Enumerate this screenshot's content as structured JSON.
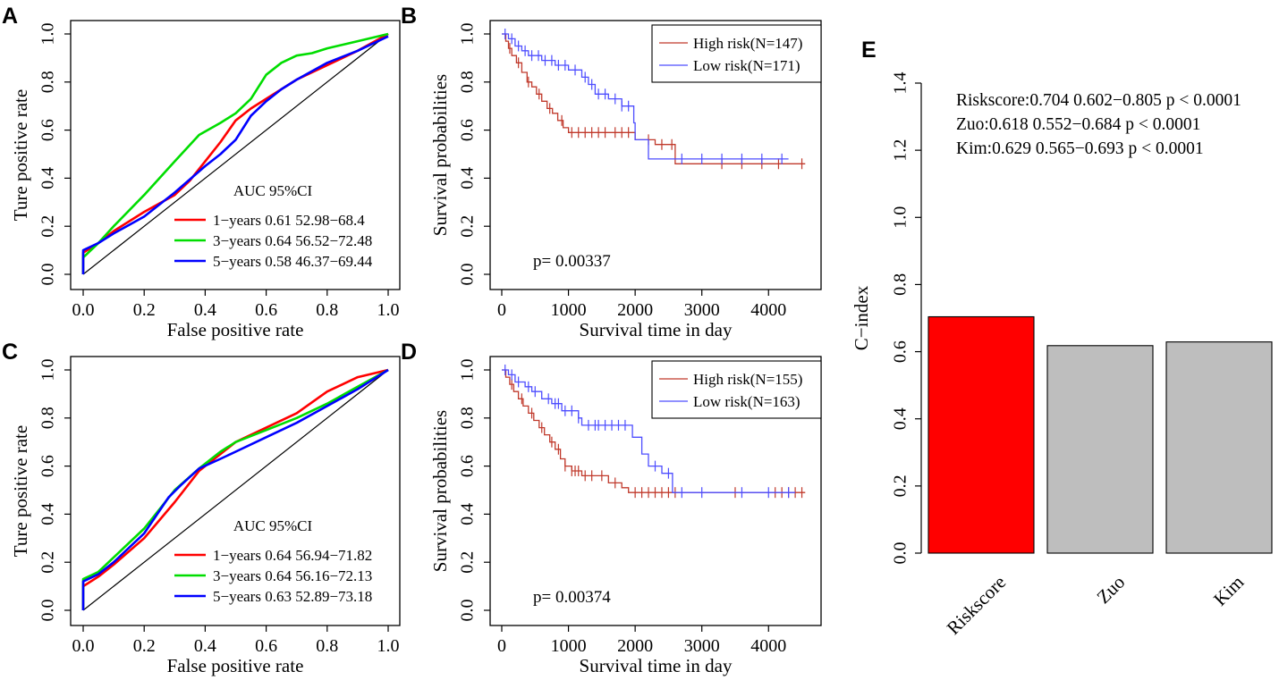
{
  "panels": {
    "A": {
      "letter": "A"
    },
    "B": {
      "letter": "B"
    },
    "C": {
      "letter": "C"
    },
    "D": {
      "letter": "D"
    },
    "E": {
      "letter": "E"
    }
  },
  "chart_data": [
    {
      "panel": "A",
      "type": "line",
      "title": "",
      "xlabel": "False positive rate",
      "ylabel": "Ture positive rate",
      "xlim": [
        0,
        1
      ],
      "ylim": [
        0,
        1
      ],
      "xticks": [
        "0.0",
        "0.2",
        "0.4",
        "0.6",
        "0.8",
        "1.0"
      ],
      "yticks": [
        "0.0",
        "0.2",
        "0.4",
        "0.6",
        "0.8",
        "1.0"
      ],
      "legend_title": "AUC 95%CI",
      "diagonal": true,
      "series": [
        {
          "name": "1−years 0.61 52.98−68.4",
          "color": "#ff0000",
          "points": [
            [
              0,
              0
            ],
            [
              0,
              0.09
            ],
            [
              0.05,
              0.13
            ],
            [
              0.1,
              0.18
            ],
            [
              0.2,
              0.26
            ],
            [
              0.3,
              0.33
            ],
            [
              0.35,
              0.39
            ],
            [
              0.4,
              0.47
            ],
            [
              0.45,
              0.55
            ],
            [
              0.5,
              0.64
            ],
            [
              0.55,
              0.69
            ],
            [
              0.6,
              0.73
            ],
            [
              0.65,
              0.77
            ],
            [
              0.7,
              0.81
            ],
            [
              0.8,
              0.87
            ],
            [
              0.9,
              0.93
            ],
            [
              1,
              1
            ]
          ]
        },
        {
          "name": "3−years 0.64 56.52−72.48",
          "color": "#00dd00",
          "points": [
            [
              0,
              0
            ],
            [
              0,
              0.07
            ],
            [
              0.05,
              0.13
            ],
            [
              0.1,
              0.2
            ],
            [
              0.2,
              0.33
            ],
            [
              0.3,
              0.47
            ],
            [
              0.38,
              0.58
            ],
            [
              0.45,
              0.63
            ],
            [
              0.5,
              0.67
            ],
            [
              0.55,
              0.73
            ],
            [
              0.6,
              0.83
            ],
            [
              0.65,
              0.88
            ],
            [
              0.7,
              0.91
            ],
            [
              0.75,
              0.92
            ],
            [
              0.8,
              0.94
            ],
            [
              0.9,
              0.97
            ],
            [
              1,
              1
            ]
          ]
        },
        {
          "name": "5−years 0.58 46.37−69.44",
          "color": "#0000ff",
          "points": [
            [
              0,
              0
            ],
            [
              0,
              0.1
            ],
            [
              0.05,
              0.13
            ],
            [
              0.1,
              0.17
            ],
            [
              0.2,
              0.24
            ],
            [
              0.3,
              0.34
            ],
            [
              0.4,
              0.45
            ],
            [
              0.45,
              0.5
            ],
            [
              0.5,
              0.56
            ],
            [
              0.55,
              0.66
            ],
            [
              0.6,
              0.72
            ],
            [
              0.65,
              0.77
            ],
            [
              0.7,
              0.81
            ],
            [
              0.8,
              0.88
            ],
            [
              0.9,
              0.93
            ],
            [
              1,
              0.99
            ]
          ]
        }
      ]
    },
    {
      "panel": "B",
      "type": "line",
      "subtype": "kaplan-meier",
      "title": "",
      "xlabel": "Survival time in day",
      "ylabel": "Survival probabilities",
      "xlim": [
        0,
        4600
      ],
      "ylim": [
        0,
        1
      ],
      "xticks": [
        "0",
        "1000",
        "2000",
        "3000",
        "4000"
      ],
      "yticks": [
        "0.0",
        "0.2",
        "0.4",
        "0.6",
        "0.8",
        "1.0"
      ],
      "pvalue_label": "p= 0.00337",
      "series": [
        {
          "name": "High risk(N=147)",
          "color": "#c0392b",
          "steps": [
            [
              0,
              1
            ],
            [
              60,
              0.97
            ],
            [
              100,
              0.94
            ],
            [
              150,
              0.91
            ],
            [
              220,
              0.88
            ],
            [
              300,
              0.84
            ],
            [
              380,
              0.8
            ],
            [
              450,
              0.78
            ],
            [
              520,
              0.75
            ],
            [
              600,
              0.72
            ],
            [
              680,
              0.69
            ],
            [
              760,
              0.67
            ],
            [
              840,
              0.64
            ],
            [
              920,
              0.61
            ],
            [
              1000,
              0.59
            ],
            [
              1400,
              0.59
            ],
            [
              2000,
              0.56
            ],
            [
              2300,
              0.54
            ],
            [
              2600,
              0.46
            ],
            [
              4550,
              0.46
            ]
          ],
          "censor_x": [
            120,
            250,
            400,
            560,
            720,
            900,
            1050,
            1150,
            1250,
            1350,
            1450,
            1550,
            1700,
            1800,
            1900,
            2200,
            2400,
            2550,
            3300,
            3600,
            3900,
            4150,
            4500
          ]
        },
        {
          "name": "Low risk(N=171)",
          "color": "#4d4dff",
          "steps": [
            [
              0,
              1
            ],
            [
              100,
              0.98
            ],
            [
              200,
              0.95
            ],
            [
              300,
              0.93
            ],
            [
              400,
              0.91
            ],
            [
              600,
              0.89
            ],
            [
              800,
              0.87
            ],
            [
              1000,
              0.85
            ],
            [
              1200,
              0.82
            ],
            [
              1300,
              0.79
            ],
            [
              1400,
              0.75
            ],
            [
              1600,
              0.73
            ],
            [
              1800,
              0.7
            ],
            [
              1980,
              0.63
            ],
            [
              2000,
              0.56
            ],
            [
              2200,
              0.48
            ],
            [
              4300,
              0.48
            ]
          ],
          "censor_x": [
            50,
            150,
            250,
            350,
            450,
            550,
            650,
            750,
            850,
            950,
            1100,
            1250,
            1350,
            1450,
            1550,
            1700,
            1800,
            1900,
            2700,
            3000,
            3300,
            3600,
            3900,
            4200
          ]
        }
      ]
    },
    {
      "panel": "C",
      "type": "line",
      "title": "",
      "xlabel": "False positive rate",
      "ylabel": "Ture positive rate",
      "xlim": [
        0,
        1
      ],
      "ylim": [
        0,
        1
      ],
      "xticks": [
        "0.0",
        "0.2",
        "0.4",
        "0.6",
        "0.8",
        "1.0"
      ],
      "yticks": [
        "0.0",
        "0.2",
        "0.4",
        "0.6",
        "0.8",
        "1.0"
      ],
      "legend_title": "AUC 95%CI",
      "diagonal": true,
      "series": [
        {
          "name": "1−years 0.64 56.94−71.82",
          "color": "#ff0000",
          "points": [
            [
              0,
              0
            ],
            [
              0,
              0.1
            ],
            [
              0.05,
              0.14
            ],
            [
              0.1,
              0.19
            ],
            [
              0.2,
              0.3
            ],
            [
              0.3,
              0.45
            ],
            [
              0.38,
              0.58
            ],
            [
              0.45,
              0.65
            ],
            [
              0.5,
              0.7
            ],
            [
              0.6,
              0.76
            ],
            [
              0.7,
              0.82
            ],
            [
              0.8,
              0.91
            ],
            [
              0.9,
              0.97
            ],
            [
              1,
              1
            ]
          ]
        },
        {
          "name": "3−years 0.64 56.16−72.13",
          "color": "#00dd00",
          "points": [
            [
              0,
              0
            ],
            [
              0,
              0.13
            ],
            [
              0.05,
              0.16
            ],
            [
              0.1,
              0.22
            ],
            [
              0.2,
              0.34
            ],
            [
              0.3,
              0.5
            ],
            [
              0.38,
              0.59
            ],
            [
              0.45,
              0.66
            ],
            [
              0.5,
              0.7
            ],
            [
              0.6,
              0.75
            ],
            [
              0.7,
              0.8
            ],
            [
              0.8,
              0.86
            ],
            [
              0.9,
              0.93
            ],
            [
              1,
              1
            ]
          ]
        },
        {
          "name": "5−years 0.63 52.89−73.18",
          "color": "#0000ff",
          "points": [
            [
              0,
              0
            ],
            [
              0,
              0.12
            ],
            [
              0.05,
              0.15
            ],
            [
              0.1,
              0.2
            ],
            [
              0.2,
              0.32
            ],
            [
              0.28,
              0.47
            ],
            [
              0.32,
              0.52
            ],
            [
              0.38,
              0.59
            ],
            [
              0.45,
              0.63
            ],
            [
              0.5,
              0.66
            ],
            [
              0.6,
              0.72
            ],
            [
              0.7,
              0.78
            ],
            [
              0.8,
              0.85
            ],
            [
              0.9,
              0.92
            ],
            [
              1,
              1
            ]
          ]
        }
      ]
    },
    {
      "panel": "D",
      "type": "line",
      "subtype": "kaplan-meier",
      "title": "",
      "xlabel": "Survival time in day",
      "ylabel": "Survival probabilities",
      "xlim": [
        0,
        4600
      ],
      "ylim": [
        0,
        1
      ],
      "xticks": [
        "0",
        "1000",
        "2000",
        "3000",
        "4000"
      ],
      "yticks": [
        "0.0",
        "0.2",
        "0.4",
        "0.6",
        "0.8",
        "1.0"
      ],
      "pvalue_label": "p= 0.00374",
      "series": [
        {
          "name": "High risk(N=155)",
          "color": "#c0392b",
          "steps": [
            [
              0,
              1
            ],
            [
              60,
              0.97
            ],
            [
              120,
              0.94
            ],
            [
              180,
              0.91
            ],
            [
              250,
              0.88
            ],
            [
              320,
              0.85
            ],
            [
              400,
              0.82
            ],
            [
              480,
              0.79
            ],
            [
              560,
              0.76
            ],
            [
              640,
              0.73
            ],
            [
              720,
              0.7
            ],
            [
              800,
              0.67
            ],
            [
              880,
              0.63
            ],
            [
              950,
              0.6
            ],
            [
              1050,
              0.58
            ],
            [
              1200,
              0.56
            ],
            [
              1600,
              0.53
            ],
            [
              1800,
              0.51
            ],
            [
              1900,
              0.49
            ],
            [
              4550,
              0.49
            ]
          ],
          "censor_x": [
            150,
            300,
            450,
            600,
            750,
            850,
            950,
            1050,
            1100,
            1150,
            1250,
            1350,
            1500,
            1700,
            2000,
            2100,
            2200,
            2300,
            2400,
            2500,
            2600,
            3500,
            4100,
            4200,
            4300,
            4400,
            4500
          ]
        },
        {
          "name": "Low risk(N=163)",
          "color": "#4d4dff",
          "steps": [
            [
              0,
              1
            ],
            [
              100,
              0.98
            ],
            [
              200,
              0.95
            ],
            [
              350,
              0.93
            ],
            [
              450,
              0.91
            ],
            [
              600,
              0.88
            ],
            [
              750,
              0.86
            ],
            [
              900,
              0.83
            ],
            [
              1150,
              0.8
            ],
            [
              1200,
              0.77
            ],
            [
              1900,
              0.77
            ],
            [
              1960,
              0.72
            ],
            [
              2100,
              0.65
            ],
            [
              2200,
              0.6
            ],
            [
              2400,
              0.57
            ],
            [
              2560,
              0.49
            ],
            [
              4400,
              0.49
            ]
          ],
          "censor_x": [
            50,
            150,
            250,
            400,
            500,
            700,
            800,
            850,
            950,
            1050,
            1150,
            1300,
            1400,
            1450,
            1550,
            1650,
            1750,
            1850,
            2300,
            2500,
            2700,
            3000,
            3600,
            4000,
            4300
          ]
        }
      ]
    },
    {
      "panel": "E",
      "type": "bar",
      "title": "",
      "xlabel": "",
      "ylabel": "C−index",
      "ylim": [
        0,
        1.4
      ],
      "yticks": [
        "0.0",
        "0.2",
        "0.4",
        "0.6",
        "0.8",
        "1.0",
        "1.2",
        "1.4"
      ],
      "categories": [
        "Riskscore",
        "Zuo",
        "Kim"
      ],
      "values": [
        0.704,
        0.618,
        0.629
      ],
      "colors": [
        "#ff0000",
        "#bebebe",
        "#bebebe"
      ],
      "annotations": [
        "Riskscore:0.704 0.602−0.805 p < 0.0001",
        "Zuo:0.618 0.552−0.684 p < 0.0001",
        "Kim:0.629 0.565−0.693 p < 0.0001"
      ]
    }
  ]
}
